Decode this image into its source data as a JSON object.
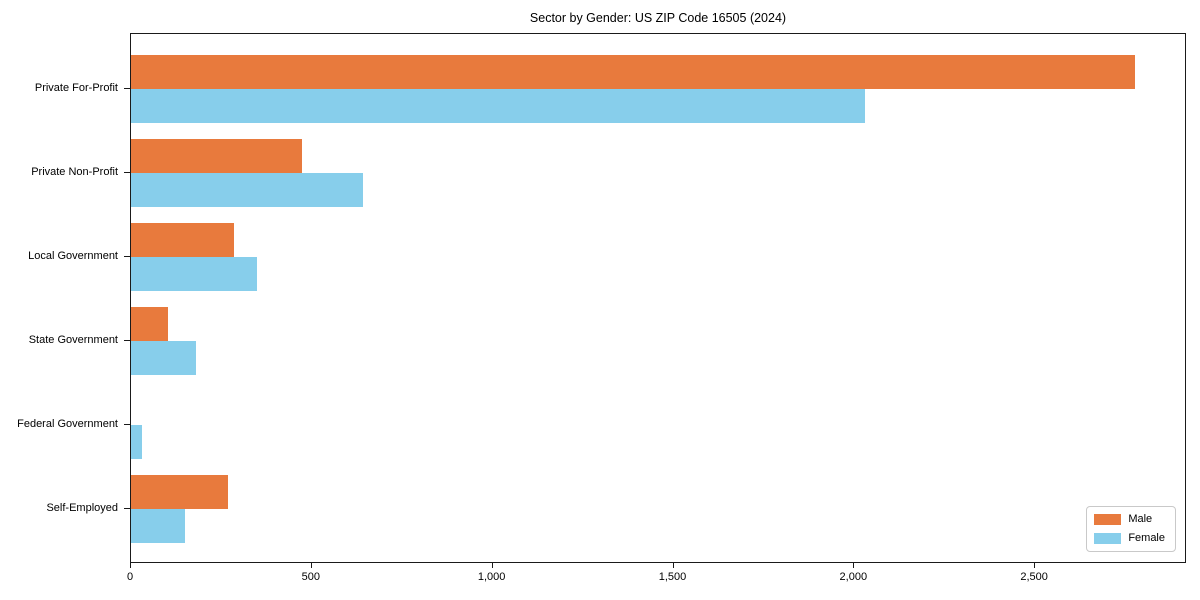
{
  "chart_data": {
    "type": "bar",
    "orientation": "horizontal",
    "title": "Sector by Gender: US ZIP Code 16505 (2024)",
    "categories": [
      "Private For-Profit",
      "Private Non-Profit",
      "Local Government",
      "State Government",
      "Federal Government",
      "Self-Employed"
    ],
    "series": [
      {
        "name": "Male",
        "color": "#e87a3d",
        "values": [
          2775,
          473,
          284,
          101,
          0,
          267
        ]
      },
      {
        "name": "Female",
        "color": "#87ceeb",
        "values": [
          2030,
          641,
          348,
          180,
          29,
          149
        ]
      }
    ],
    "xlabel": "",
    "ylabel": "",
    "xlim": [
      0,
      2920
    ],
    "xticks": [
      0,
      500,
      1000,
      1500,
      2000,
      2500
    ],
    "xtick_labels": [
      "0",
      "500",
      "1,000",
      "1,500",
      "2,000",
      "2,500"
    ],
    "grid": false,
    "legend_position": "lower right",
    "axis_color": "#1a1a1a",
    "background_color": "#ffffff"
  }
}
